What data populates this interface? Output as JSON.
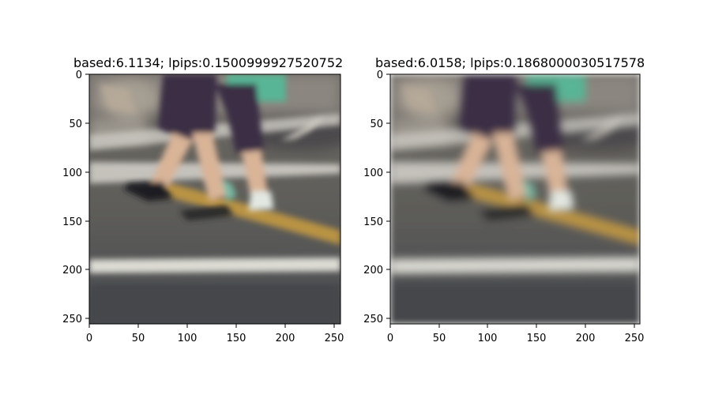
{
  "panels": [
    {
      "title": "based:6.1134; lpips:0.1500999927520752"
    },
    {
      "title": "based:6.0158; lpips:0.1868000030517578"
    }
  ],
  "x_ticks": [
    "0",
    "50",
    "100",
    "150",
    "200",
    "250"
  ],
  "y_ticks": [
    "0",
    "50",
    "100",
    "150",
    "200",
    "250"
  ],
  "image_size": [
    256,
    256
  ],
  "colors": {
    "road": "#5f5e5a",
    "road_stripe": "#d8d7cf",
    "yellow_line": "#c49a40",
    "shorts": "#3a2f45",
    "skin": "#d9b497",
    "bag": "#59b595",
    "axis": "#000000"
  }
}
